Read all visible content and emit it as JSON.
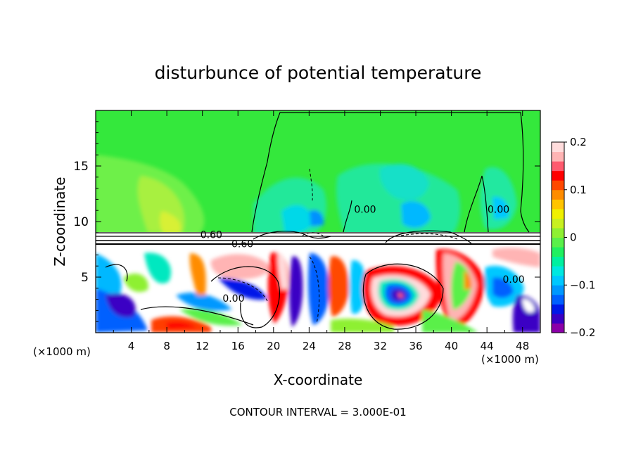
{
  "chart_data": {
    "type": "heatmap",
    "title": "disturbunce of potential temperature",
    "xlabel": "X-coordinate",
    "ylabel": "Z-coordinate",
    "x_unit": "(×1000 m)",
    "y_unit": "(×1000 m)",
    "xlim": [
      0,
      50
    ],
    "ylim": [
      0,
      20
    ],
    "x_ticks": [
      "4",
      "8",
      "12",
      "16",
      "20",
      "24",
      "28",
      "32",
      "36",
      "40",
      "44",
      "48"
    ],
    "x_tick_values": [
      4,
      8,
      12,
      16,
      20,
      24,
      28,
      32,
      36,
      40,
      44,
      48
    ],
    "y_ticks": [
      "5",
      "10",
      "15"
    ],
    "y_tick_values": [
      5,
      10,
      15
    ],
    "footer": "CONTOUR INTERVAL = 3.000E-01",
    "colorbar": {
      "vmin": -0.2,
      "vmax": 0.2,
      "tick_labels": [
        "0.2",
        "0.1",
        "0",
        "−0.1",
        "−0.2"
      ],
      "tick_values": [
        0.2,
        0.1,
        0,
        -0.1,
        -0.2
      ],
      "colors": [
        "#8b00a8",
        "#3a00c4",
        "#0018e8",
        "#0060ff",
        "#0098ff",
        "#00c8ff",
        "#00e8e0",
        "#00f0a0",
        "#20f060",
        "#5af04a",
        "#8ef032",
        "#c8f020",
        "#f0f000",
        "#ffc400",
        "#ff8c00",
        "#ff4800",
        "#ff0000",
        "#ff5a6e",
        "#ffb4b4",
        "#ffdcdc"
      ]
    },
    "contour_labels": [
      {
        "text": "0.00",
        "x": 15.5,
        "z": 2.8
      },
      {
        "text": "0.00",
        "x": 30.3,
        "z": 10.8
      },
      {
        "text": "0.00",
        "x": 45.3,
        "z": 10.8
      },
      {
        "text": "0.00",
        "x": 47.0,
        "z": 4.5
      },
      {
        "text": "0.60",
        "x": 13.0,
        "z": 8.5
      },
      {
        "text": "0.60",
        "x": 16.5,
        "z": 7.7
      }
    ]
  }
}
